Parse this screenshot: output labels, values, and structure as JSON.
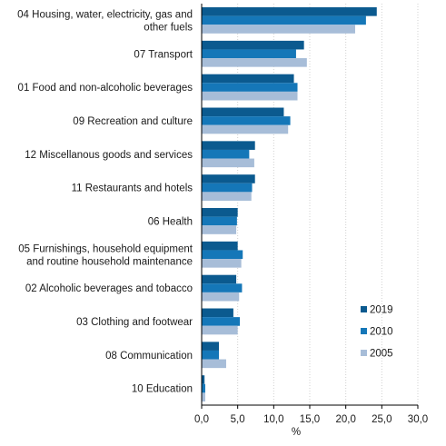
{
  "chart_data": {
    "type": "bar",
    "orientation": "horizontal",
    "title": "",
    "xlabel": "%",
    "ylabel": "",
    "xlim": [
      0,
      30
    ],
    "xticks": [
      "0,0",
      "5,0",
      "10,0",
      "15,0",
      "20,0",
      "25,0",
      "30,0"
    ],
    "grid": true,
    "legend_position": "bottom-right",
    "categories": [
      [
        "04 Housing, water, electricity, gas and",
        "other fuels"
      ],
      [
        "07 Transport"
      ],
      [
        "01 Food and non-alcoholic beverages"
      ],
      [
        "09 Recreation and culture"
      ],
      [
        "12 Miscellanous goods and services"
      ],
      [
        "11 Restaurants and hotels"
      ],
      [
        "06 Health"
      ],
      [
        "05 Furnishings, household equipment",
        "and routine household maintenance"
      ],
      [
        "02 Alcoholic beverages and tobacco"
      ],
      [
        "03 Clothing and footwear"
      ],
      [
        "08 Communication"
      ],
      [
        "10 Education"
      ]
    ],
    "series": [
      {
        "name": "2019",
        "color": "#0b5a8f",
        "values": [
          24.3,
          14.2,
          12.8,
          11.4,
          7.4,
          7.4,
          5.0,
          5.0,
          4.8,
          4.4,
          2.4,
          0.4
        ]
      },
      {
        "name": "2010",
        "color": "#1577b8",
        "values": [
          22.8,
          13.1,
          13.3,
          12.3,
          6.6,
          7.0,
          4.9,
          5.7,
          5.6,
          5.3,
          2.4,
          0.5
        ]
      },
      {
        "name": "2005",
        "color": "#a7bdd8",
        "values": [
          21.3,
          14.6,
          13.3,
          12.0,
          7.3,
          6.9,
          4.8,
          5.5,
          5.2,
          5.0,
          3.4,
          0.5
        ]
      }
    ]
  }
}
